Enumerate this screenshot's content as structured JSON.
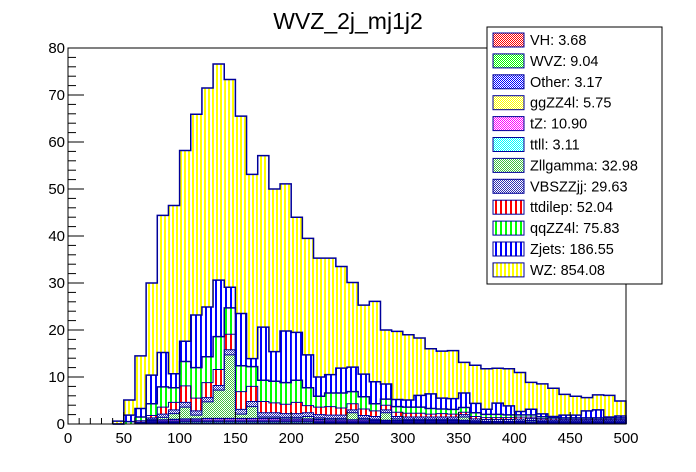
{
  "chart_data": {
    "type": "bar",
    "stacked": true,
    "title": "WVZ_2j_mj1j2",
    "xlabel": "",
    "ylabel": "",
    "xlim": [
      0,
      500
    ],
    "ylim": [
      0,
      80
    ],
    "bin_width": 10,
    "x_ticks": [
      0,
      50,
      100,
      150,
      200,
      250,
      300,
      350,
      400,
      450,
      500
    ],
    "y_ticks": [
      0,
      10,
      20,
      30,
      40,
      50,
      60,
      70,
      80
    ],
    "legend_position": "top-right",
    "grid": false,
    "bin_low_edges": [
      40,
      50,
      60,
      70,
      80,
      90,
      100,
      110,
      120,
      130,
      140,
      150,
      160,
      170,
      180,
      190,
      200,
      210,
      220,
      230,
      240,
      250,
      260,
      270,
      280,
      290,
      300,
      310,
      320,
      330,
      340,
      350,
      360,
      370,
      380,
      390,
      400,
      410,
      420,
      430,
      440,
      450,
      460,
      470,
      480,
      490
    ],
    "stack_totals": [
      0.6,
      5.1,
      14.5,
      29.8,
      43.9,
      46.4,
      57.8,
      65.7,
      71.0,
      76.4,
      67.2,
      63.8,
      50.8,
      56.5,
      49.6,
      50.6,
      43.8,
      39.0,
      35.2,
      35.4,
      33.7,
      30.1,
      25.3,
      24.7,
      19.7,
      19.5,
      18.9,
      18.3,
      16.1,
      15.4,
      15.6,
      13.0,
      12.5,
      11.6,
      11.8,
      11.6,
      10.8,
      8.8,
      8.4,
      7.4,
      6.2,
      5.8,
      5.5,
      6.1,
      6.0,
      4.7
    ],
    "series": [
      {
        "name": "VH",
        "legend": "VH: 3.68",
        "color": "#ff0000",
        "fill": "checker",
        "values": [
          0,
          0,
          0,
          0.1,
          0.1,
          0.1,
          0.1,
          0.1,
          0.1,
          0.1,
          0.1,
          0.1,
          0.1,
          0.1,
          0.1,
          0.1,
          0.1,
          0.1,
          0.1,
          0.1,
          0.1,
          0.1,
          0.1,
          0.1,
          0.1,
          0.1,
          0.1,
          0.1,
          0.1,
          0.1,
          0.1,
          0.1,
          0.1,
          0.05,
          0.05,
          0.05,
          0.05,
          0.05,
          0.05,
          0.05,
          0.05,
          0.05,
          0.05,
          0.05,
          0.05,
          0.05
        ]
      },
      {
        "name": "WVZ",
        "legend": "WVZ: 9.04",
        "color": "#00ff00",
        "fill": "checker",
        "values": [
          0,
          0,
          0.1,
          0.2,
          0.2,
          0.2,
          0.3,
          0.3,
          0.3,
          0.3,
          0.3,
          0.3,
          0.3,
          0.3,
          0.3,
          0.3,
          0.3,
          0.3,
          0.2,
          0.2,
          0.2,
          0.2,
          0.2,
          0.2,
          0.2,
          0.2,
          0.2,
          0.2,
          0.2,
          0.2,
          0.2,
          0.2,
          0.1,
          0.1,
          0.1,
          0.1,
          0.1,
          0.1,
          0.1,
          0.1,
          0.1,
          0.1,
          0.1,
          0.1,
          0.1,
          0.1
        ]
      },
      {
        "name": "Other",
        "legend": "Other: 3.17",
        "color": "#0000ff",
        "fill": "checker",
        "values": [
          0,
          0,
          0,
          0.1,
          0.1,
          0.1,
          0.1,
          0.1,
          0.1,
          0.1,
          0.1,
          0.1,
          0.1,
          0.1,
          0.1,
          0.1,
          0.1,
          0.1,
          0.1,
          0.1,
          0.1,
          0.1,
          0.1,
          0.1,
          0.1,
          0.1,
          0.1,
          0.1,
          0.1,
          0.1,
          0.1,
          0.1,
          0.05,
          0.05,
          0.05,
          0.05,
          0.05,
          0.05,
          0.05,
          0.05,
          0.05,
          0.05,
          0.05,
          0.05,
          0.05,
          0.05
        ]
      },
      {
        "name": "ggZZ4l",
        "legend": "ggZZ4l: 5.75",
        "color": "#ffff00",
        "fill": "checker",
        "values": [
          0,
          0,
          0.1,
          0.1,
          0.1,
          0.2,
          0.2,
          0.2,
          0.2,
          0.2,
          0.2,
          0.2,
          0.2,
          0.2,
          0.2,
          0.2,
          0.2,
          0.2,
          0.2,
          0.1,
          0.1,
          0.1,
          0.1,
          0.1,
          0.1,
          0.1,
          0.1,
          0.1,
          0.1,
          0.1,
          0.1,
          0.1,
          0.1,
          0.1,
          0.1,
          0.1,
          0.1,
          0.1,
          0.1,
          0.05,
          0.05,
          0.05,
          0.05,
          0.05,
          0.05,
          0.05
        ]
      },
      {
        "name": "tZ",
        "legend": "tZ: 10.90",
        "color": "#ff00ff",
        "fill": "checker",
        "values": [
          0,
          0,
          0.1,
          0.2,
          0.3,
          0.3,
          0.3,
          0.3,
          0.4,
          0.4,
          0.4,
          0.4,
          0.4,
          0.4,
          0.4,
          0.3,
          0.3,
          0.3,
          0.3,
          0.3,
          0.3,
          0.3,
          0.3,
          0.2,
          0.2,
          0.2,
          0.2,
          0.2,
          0.2,
          0.2,
          0.2,
          0.2,
          0.1,
          0.1,
          0.1,
          0.1,
          0.1,
          0.1,
          0.1,
          0.1,
          0.1,
          0.1,
          0.1,
          0.1,
          0.1,
          0.1
        ]
      },
      {
        "name": "ttll",
        "legend": "ttll: 3.11",
        "color": "#00ffff",
        "fill": "checker",
        "values": [
          0,
          0,
          0,
          0.1,
          0.1,
          0.1,
          0.1,
          0.1,
          0.1,
          0.1,
          0.1,
          0.1,
          0.1,
          0.1,
          0.1,
          0.1,
          0.1,
          0.1,
          0.1,
          0.1,
          0.1,
          0.1,
          0.1,
          0.1,
          0.1,
          0.1,
          0.1,
          0.1,
          0.1,
          0.1,
          0.1,
          0.1,
          0.05,
          0.05,
          0.05,
          0.05,
          0.05,
          0.05,
          0.05,
          0.05,
          0.05,
          0.05,
          0.05,
          0.05,
          0.05,
          0.05
        ]
      },
      {
        "name": "Zllgamma",
        "legend": "Zllgamma: 32.98",
        "color": "#00c000",
        "fill": "checker-light",
        "values": [
          0,
          0,
          0,
          0.2,
          0.5,
          1.2,
          2.5,
          0.8,
          3.5,
          6.0,
          13.5,
          0.9,
          2.5,
          0.3,
          0.3,
          0.3,
          0.3,
          0.5,
          0.3,
          0.3,
          0.3,
          1.5,
          0.3,
          0.2,
          1.6,
          0.3,
          0.2,
          0.2,
          0.2,
          0.2,
          0.2,
          0.7,
          0.2,
          0.1,
          0.1,
          0.1,
          0.2,
          0.3,
          0.1,
          0.1,
          0.1,
          0.1,
          0.1,
          0.1,
          0.1,
          0.1
        ]
      },
      {
        "name": "VBSZZjj",
        "legend": "VBSZZjj: 29.63",
        "color": "#0000c0",
        "fill": "checker-dense",
        "values": [
          0,
          0,
          0.1,
          0.3,
          0.7,
          0.8,
          1.0,
          0.9,
          0.9,
          1.0,
          1.1,
          1.0,
          1.1,
          0.9,
          0.9,
          0.8,
          0.8,
          0.8,
          0.7,
          0.7,
          0.7,
          0.6,
          0.6,
          0.6,
          0.6,
          0.5,
          0.5,
          0.5,
          0.5,
          0.5,
          0.5,
          0.5,
          0.4,
          0.4,
          0.4,
          0.4,
          0.4,
          0.4,
          0.3,
          0.3,
          0.3,
          0.3,
          0.3,
          0.3,
          0.3,
          0.3
        ]
      },
      {
        "name": "ttdilep",
        "legend": "ttdilep: 52.04",
        "color": "#ff0000",
        "fill": "vstripe",
        "values": [
          0,
          0,
          0.3,
          0.5,
          1.5,
          1.6,
          3.5,
          2.7,
          3.2,
          3.4,
          3.3,
          3.8,
          3.2,
          2.4,
          2.1,
          2.0,
          2.4,
          1.5,
          1.6,
          1.8,
          1.5,
          1.3,
          1.4,
          1.2,
          1.0,
          0.9,
          0.8,
          0.8,
          0.6,
          0.7,
          0.6,
          0.5,
          0.5,
          0.4,
          0.4,
          0.4,
          0.4,
          0.3,
          0.3,
          0.3,
          0.2,
          0.2,
          0.2,
          0.2,
          0.2,
          0.2
        ]
      },
      {
        "name": "qqZZ4l",
        "legend": "qqZZ4l: 75.83",
        "color": "#00ff00",
        "fill": "vstripe",
        "values": [
          0,
          0.5,
          0.8,
          2.5,
          4.3,
          3.1,
          5.2,
          6.5,
          5.5,
          7.0,
          5.6,
          5.5,
          4.2,
          4.5,
          4.6,
          4.6,
          4.7,
          3.8,
          2.3,
          2.9,
          3.2,
          2.6,
          2.6,
          1.5,
          1.3,
          1.2,
          1.3,
          1.3,
          1.2,
          1.0,
          1.0,
          1.0,
          0.8,
          0.7,
          0.7,
          0.6,
          0.5,
          0.5,
          0.4,
          0.3,
          0.3,
          0.3,
          0.3,
          0.3,
          0.3,
          0.3
        ]
      },
      {
        "name": "Zjets",
        "legend": "Zjets: 186.55",
        "color": "#0000ff",
        "fill": "vstripe",
        "values": [
          0,
          1.4,
          1.8,
          6.1,
          7.3,
          3.0,
          4.3,
          11.2,
          10.6,
          12.0,
          4.4,
          11.1,
          1.7,
          11.3,
          6.3,
          11.0,
          10.2,
          7.0,
          4.1,
          3.9,
          5.3,
          5.2,
          4.8,
          4.7,
          3.2,
          1.5,
          1.5,
          2.5,
          3.1,
          2.3,
          2.3,
          3.1,
          2.0,
          1.1,
          2.4,
          1.9,
          0.7,
          1.2,
          0.6,
          0.2,
          0.6,
          0.6,
          1.5,
          1.7,
          0.2,
          0.4
        ]
      },
      {
        "name": "WZ",
        "legend": "WZ: 854.08",
        "color": "#ffff00",
        "fill": "vstripe",
        "values": [
          0.6,
          3.2,
          11.2,
          19.6,
          29.2,
          35.8,
          40.6,
          42.7,
          46.6,
          46.0,
          44.2,
          42.0,
          39.2,
          36.5,
          34.6,
          31.3,
          24.5,
          24.8,
          25.3,
          24.8,
          21.6,
          18.0,
          14.7,
          17.1,
          11.5,
          14.5,
          13.9,
          12.2,
          9.6,
          10.0,
          10.2,
          6.5,
          8.1,
          8.6,
          7.4,
          7.9,
          8.3,
          5.7,
          6.4,
          6.0,
          4.4,
          4.0,
          2.8,
          3.2,
          4.6,
          3.2
        ]
      }
    ]
  }
}
